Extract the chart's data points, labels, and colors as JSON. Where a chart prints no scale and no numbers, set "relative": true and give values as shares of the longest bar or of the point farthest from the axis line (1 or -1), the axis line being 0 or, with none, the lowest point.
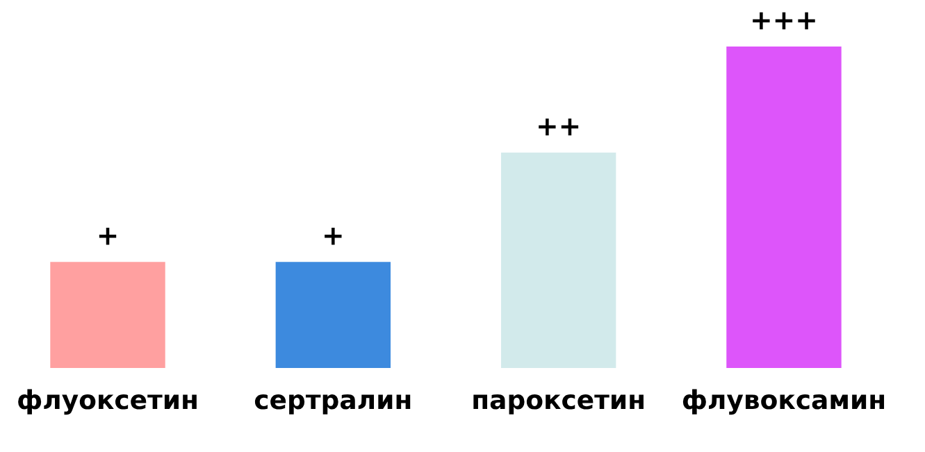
{
  "chart_data": {
    "type": "bar",
    "relative": true,
    "categories": [
      "флуоксетин",
      "сертралин",
      "пароксетин",
      "флувоксамин"
    ],
    "values": [
      0.33,
      0.33,
      0.67,
      1
    ],
    "colors": [
      "#ffa0a0",
      "#3d8ade",
      "#d2eaeb",
      "#dd55fa"
    ],
    "annotations": [
      {
        "text": "+",
        "x": "флуоксетин",
        "y": 0.33
      },
      {
        "text": "+",
        "x": "сертралин",
        "y": 0.33
      },
      {
        "text": "++",
        "x": "пароксетин",
        "y": 0.67
      },
      {
        "text": "+++",
        "x": "флувоксамин",
        "y": 1
      }
    ],
    "grid": false,
    "legend": false
  }
}
